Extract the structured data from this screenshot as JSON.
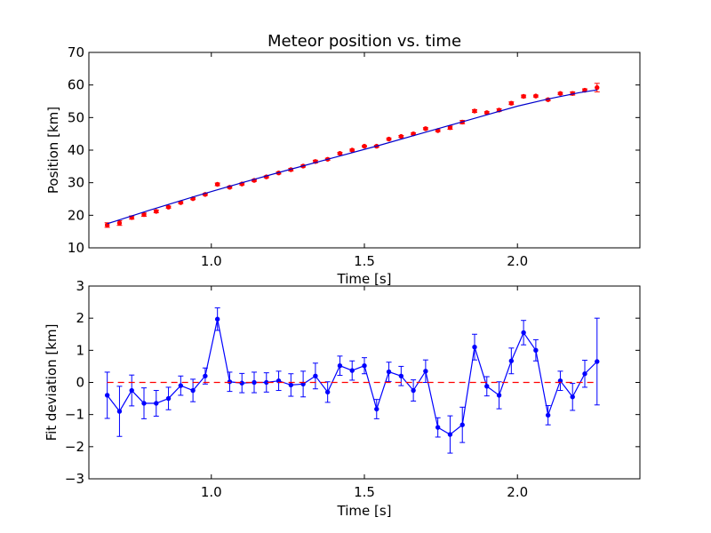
{
  "chart_data": [
    {
      "type": "scatter",
      "title": "Meteor position vs. time",
      "xlabel": "Time [s]",
      "ylabel": "Position [km]",
      "xlim": [
        0.6,
        2.4
      ],
      "ylim": [
        10,
        70
      ],
      "xticks": [
        "1.0",
        "1.5",
        "2.0"
      ],
      "yticks": [
        "10",
        "20",
        "30",
        "40",
        "50",
        "60",
        "70"
      ],
      "grid": false,
      "series": [
        {
          "kind": "errorbar-points",
          "color": "#ff0000",
          "x": [
            0.66,
            0.7,
            0.74,
            0.78,
            0.82,
            0.86,
            0.9,
            0.94,
            0.98,
            1.02,
            1.06,
            1.1,
            1.14,
            1.18,
            1.22,
            1.26,
            1.3,
            1.34,
            1.38,
            1.42,
            1.46,
            1.5,
            1.54,
            1.58,
            1.62,
            1.66,
            1.7,
            1.74,
            1.78,
            1.82,
            1.86,
            1.9,
            1.94,
            1.98,
            2.02,
            2.06,
            2.1,
            2.14,
            2.18,
            2.22,
            2.26
          ],
          "y": [
            17.0,
            17.6,
            19.3,
            20.2,
            21.2,
            22.5,
            23.9,
            25.1,
            26.4,
            29.5,
            28.6,
            29.6,
            30.7,
            31.8,
            33.0,
            34.0,
            35.1,
            36.5,
            37.2,
            39.0,
            40.0,
            41.2,
            41.2,
            43.4,
            44.2,
            45.0,
            46.6,
            46.0,
            46.9,
            48.6,
            52.0,
            51.5,
            52.3,
            54.4,
            56.5,
            56.6,
            55.5,
            57.4,
            57.4,
            58.4,
            59.2
          ],
          "err": [
            0.7,
            0.7,
            0.5,
            0.5,
            0.4,
            0.3,
            0.3,
            0.3,
            0.3,
            0.4,
            0.3,
            0.3,
            0.3,
            0.3,
            0.3,
            0.4,
            0.3,
            0.4,
            0.3,
            0.3,
            0.3,
            0.2,
            0.3,
            0.3,
            0.3,
            0.3,
            0.3,
            0.3,
            0.5,
            0.5,
            0.4,
            0.3,
            0.4,
            0.4,
            0.4,
            0.3,
            0.3,
            0.3,
            0.5,
            0.4,
            1.3
          ]
        },
        {
          "kind": "fit-line",
          "color": "#0000cc",
          "x": [
            0.66,
            0.8,
            0.95,
            1.1,
            1.25,
            1.4,
            1.55,
            1.7,
            1.85,
            2.0,
            2.1,
            2.2,
            2.26
          ],
          "y": [
            17.4,
            21.6,
            25.9,
            30.0,
            33.9,
            37.7,
            41.5,
            45.5,
            49.5,
            53.5,
            55.7,
            57.6,
            58.5
          ]
        }
      ]
    },
    {
      "type": "line",
      "title": "",
      "xlabel": "Time [s]",
      "ylabel": "Fit deviation [km]",
      "xlim": [
        0.6,
        2.4
      ],
      "ylim": [
        -3,
        3
      ],
      "xticks": [
        "1.0",
        "1.5",
        "2.0"
      ],
      "yticks": [
        "−3",
        "−2",
        "−1",
        "0",
        "1",
        "2",
        "3"
      ],
      "grid": false,
      "series": [
        {
          "kind": "errorbar-line",
          "color": "#0000ff",
          "x": [
            0.66,
            0.7,
            0.74,
            0.78,
            0.82,
            0.86,
            0.9,
            0.94,
            0.98,
            1.02,
            1.06,
            1.1,
            1.14,
            1.18,
            1.22,
            1.26,
            1.3,
            1.34,
            1.38,
            1.42,
            1.46,
            1.5,
            1.54,
            1.58,
            1.62,
            1.66,
            1.7,
            1.74,
            1.78,
            1.82,
            1.86,
            1.9,
            1.94,
            1.98,
            2.02,
            2.06,
            2.1,
            2.14,
            2.18,
            2.22,
            2.26
          ],
          "y": [
            -0.4,
            -0.9,
            -0.25,
            -0.65,
            -0.65,
            -0.5,
            -0.1,
            -0.25,
            0.2,
            1.97,
            0.02,
            -0.02,
            0.0,
            0.0,
            0.05,
            -0.08,
            -0.05,
            0.2,
            -0.3,
            0.52,
            0.37,
            0.52,
            -0.83,
            0.33,
            0.2,
            -0.25,
            0.35,
            -1.4,
            -1.62,
            -1.32,
            1.1,
            -0.12,
            -0.4,
            0.67,
            1.55,
            1.0,
            -1.02,
            0.05,
            -0.45,
            0.27,
            0.65
          ],
          "err": [
            0.72,
            0.78,
            0.48,
            0.48,
            0.4,
            0.35,
            0.3,
            0.35,
            0.25,
            0.35,
            0.3,
            0.3,
            0.32,
            0.3,
            0.3,
            0.35,
            0.4,
            0.4,
            0.32,
            0.3,
            0.3,
            0.25,
            0.3,
            0.3,
            0.3,
            0.33,
            0.35,
            0.3,
            0.58,
            0.55,
            0.4,
            0.3,
            0.42,
            0.4,
            0.38,
            0.33,
            0.3,
            0.3,
            0.42,
            0.42,
            1.35
          ]
        },
        {
          "kind": "zero-line",
          "color": "#ff0000",
          "x": [
            0.66,
            2.26
          ],
          "y": [
            0,
            0
          ]
        }
      ]
    }
  ]
}
